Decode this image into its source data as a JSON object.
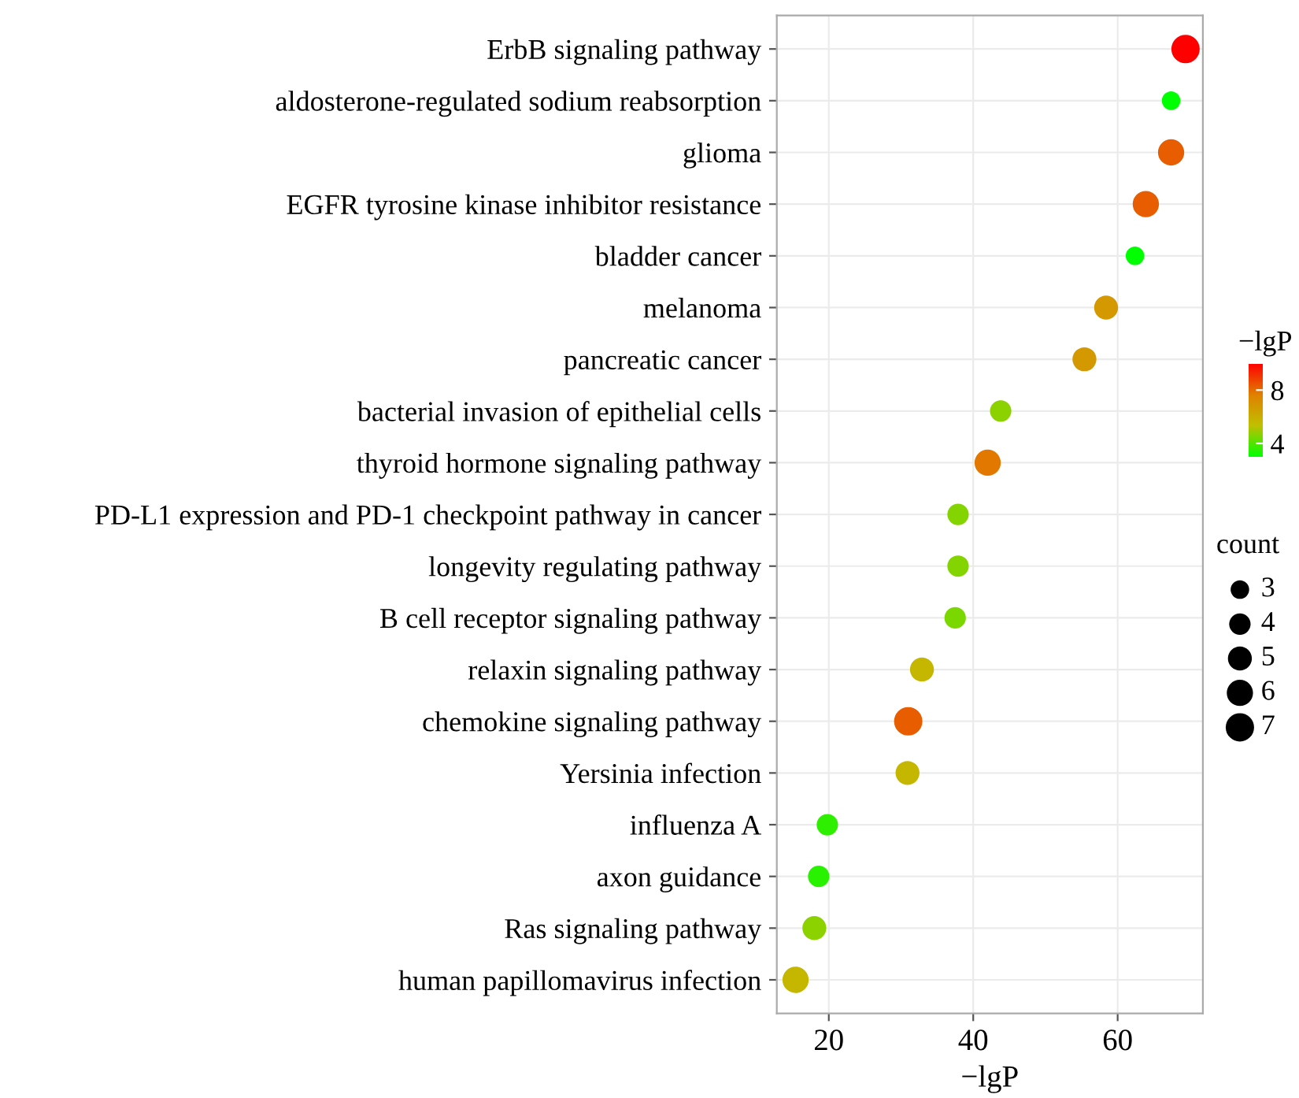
{
  "chart_data": {
    "type": "bubble",
    "xlabel": "−lgP",
    "clabel": "−lgP",
    "legend_title": "count",
    "categories": [
      "ErbB signaling pathway",
      "aldosterone-regulated sodium reabsorption",
      "glioma",
      "EGFR tyrosine kinase inhibitor resistance",
      "bladder cancer",
      "melanoma",
      "pancreatic cancer",
      "bacterial invasion of epithelial cells",
      "thyroid hormone signaling pathway",
      "PD-L1 expression and PD-1 checkpoint pathway in cancer",
      "longevity regulating pathway",
      "B cell receptor signaling pathway",
      "relaxin signaling pathway",
      "chemokine signaling pathway",
      "Yersinia infection",
      "influenza A",
      "axon guidance",
      "Ras signaling pathway",
      "human papillomavirus infection"
    ],
    "values": [
      69.4,
      67.4,
      67.4,
      63.9,
      62.4,
      58.4,
      55.4,
      43.8,
      42.0,
      37.9,
      37.9,
      37.5,
      32.9,
      31.0,
      30.9,
      19.8,
      18.6,
      18.0,
      15.4
    ],
    "sizes": [
      7,
      3,
      6,
      6,
      3,
      5,
      5,
      4,
      6,
      4,
      4,
      4,
      5,
      7,
      5,
      4,
      4,
      5,
      6
    ],
    "cvalues": [
      10,
      3,
      8.3,
      8.3,
      3,
      6.8,
      6.8,
      4.7,
      7.8,
      4.6,
      4.6,
      4.5,
      5.7,
      8.3,
      5.7,
      3.6,
      3.5,
      4.7,
      5.7
    ],
    "size_legend": [
      3,
      4,
      5,
      6,
      7
    ],
    "clim": [
      3,
      10
    ],
    "cticks": [
      4,
      8
    ],
    "orientation": "horizontal",
    "xlim": [
      12.8,
      71.8
    ],
    "xticks": [
      20,
      40,
      60
    ],
    "grid": true
  }
}
